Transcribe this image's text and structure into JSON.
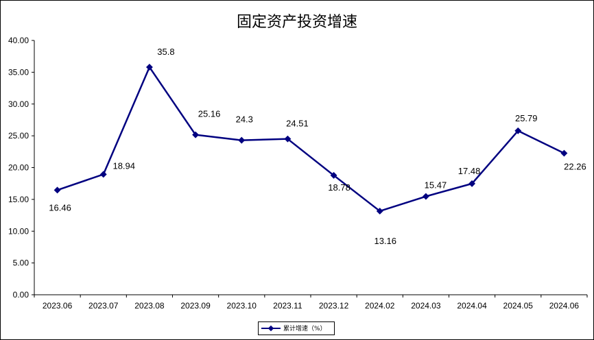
{
  "chart_data": {
    "type": "line",
    "title": "固定资产投资增速",
    "categories": [
      "2023.06",
      "2023.07",
      "2023.08",
      "2023.09",
      "2023.10",
      "2023.11",
      "2023.12",
      "2024.02",
      "2024.03",
      "2024.04",
      "2024.05",
      "2024.06"
    ],
    "series": [
      {
        "name": "累计增速（%）",
        "values": [
          16.46,
          18.94,
          35.8,
          25.16,
          24.3,
          24.51,
          18.78,
          13.16,
          15.47,
          17.48,
          25.79,
          22.26
        ],
        "color": "#000080"
      }
    ],
    "ylim": [
      0,
      40
    ],
    "yticks": [
      "0.00",
      "5.00",
      "10.00",
      "15.00",
      "20.00",
      "25.00",
      "30.00",
      "35.00",
      "40.00"
    ],
    "grid": false,
    "legend": "bottom"
  }
}
